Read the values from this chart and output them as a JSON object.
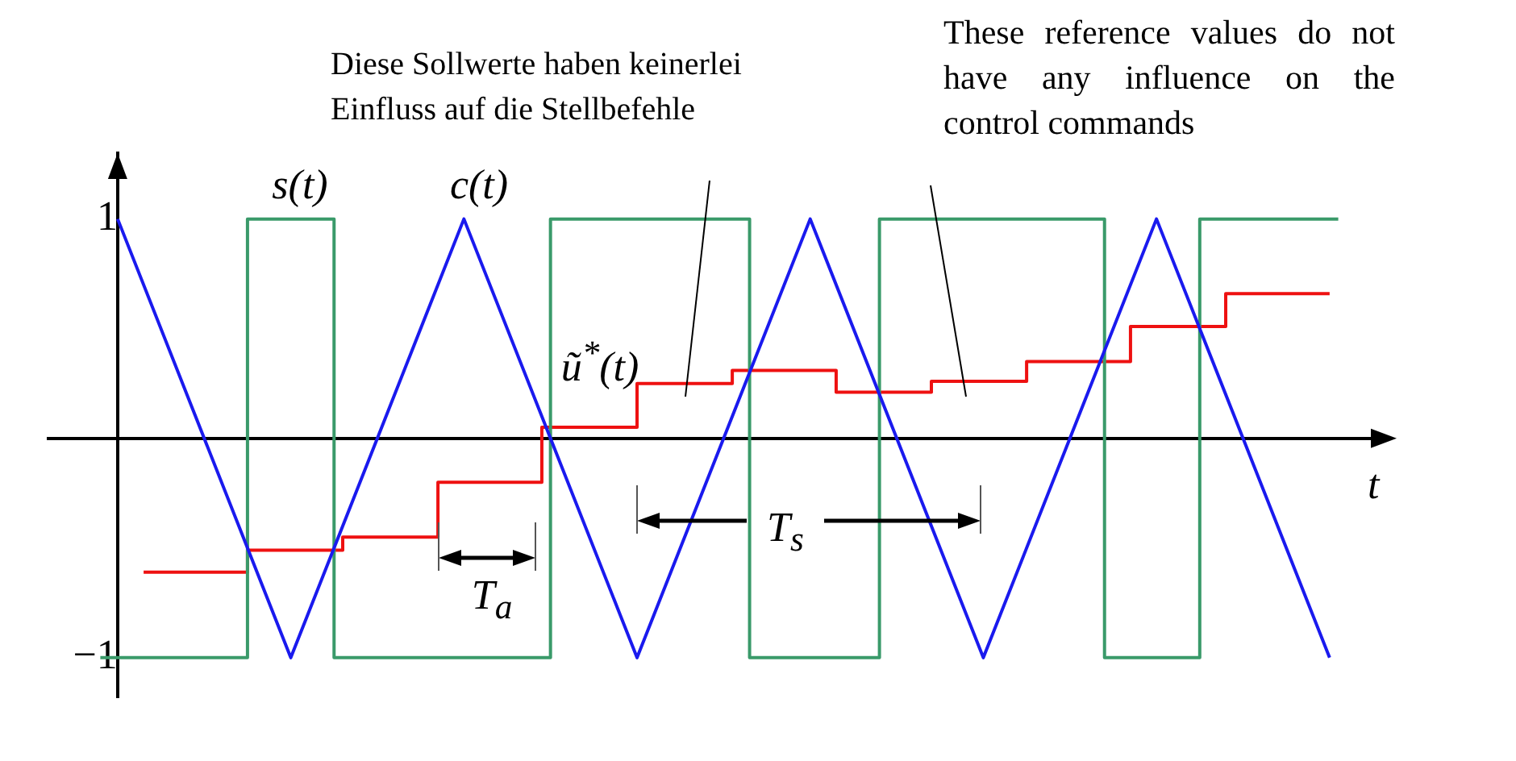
{
  "chart_data": {
    "type": "line",
    "xlabel": "t",
    "categories": [
      null,
      null,
      null,
      null,
      null,
      null,
      null,
      null,
      null,
      null,
      null,
      null,
      null,
      null,
      null,
      null,
      null,
      null,
      null,
      null,
      null,
      null,
      null,
      null,
      null,
      null,
      null,
      null,
      null,
      null,
      null,
      null,
      null,
      null,
      null,
      null,
      null,
      null,
      null,
      null,
      null,
      null,
      null,
      null,
      null,
      null,
      null,
      null,
      null,
      null,
      null,
      null,
      null,
      null,
      null,
      null,
      null,
      null,
      null,
      null,
      null,
      null,
      null,
      null,
      null,
      null,
      null,
      null,
      null,
      null,
      null,
      null,
      null,
      null,
      null,
      null,
      null,
      null,
      null,
      null,
      null,
      null,
      null,
      null,
      null,
      null,
      null,
      null,
      null,
      null,
      null,
      null,
      null,
      null,
      null,
      null,
      null,
      null,
      null,
      null,
      null,
      null,
      null,
      null,
      null,
      null,
      null,
      null,
      null,
      null,
      null,
      null,
      null,
      null,
      null,
      null,
      null,
      null,
      null,
      null,
      null,
      null,
      null,
      null,
      null,
      null,
      null,
      null,
      null,
      null,
      null,
      null,
      null,
      null,
      null,
      null,
      null,
      null,
      null,
      null,
      null,
      null,
      null,
      null,
      null,
      null,
      null,
      null,
      null,
      null,
      null,
      null,
      null,
      null,
      null,
      null
    ],
    "ylim": [
      -1.18,
      1.3
    ],
    "yticks": [
      1,
      {
        "value": -1,
        "label": "−1"
      }
    ],
    "grid": false,
    "legend": false,
    "marker": "none",
    "series": [
      {
        "type": "line",
        "color": "#1a1aee",
        "values": [
          null,
          null,
          null,
          null,
          null,
          null,
          null,
          null,
          1,
          null,
          null,
          null,
          null,
          null,
          null,
          null,
          null,
          null,
          null,
          null,
          null,
          null,
          null,
          null,
          null,
          null,
          null,
          null,
          -1,
          null,
          null,
          null,
          null,
          null,
          null,
          null,
          null,
          null,
          null,
          null,
          null,
          null,
          null,
          null,
          null,
          null,
          null,
          null,
          1,
          null,
          null,
          null,
          null,
          null,
          null,
          null,
          null,
          null,
          null,
          null,
          null,
          null,
          null,
          null,
          null,
          null,
          null,
          null,
          -1,
          null,
          null,
          null,
          null,
          null,
          null,
          null,
          null,
          null,
          null,
          null,
          null,
          null,
          null,
          null,
          null,
          null,
          null,
          null,
          1,
          null,
          null,
          null,
          null,
          null,
          null,
          null,
          null,
          null,
          null,
          null,
          null,
          null,
          null,
          null,
          null,
          null,
          null,
          null,
          -1,
          null,
          null,
          null,
          null,
          null,
          null,
          null,
          null,
          null,
          null,
          null,
          null,
          null,
          null,
          null,
          null,
          null,
          null,
          null,
          1,
          null,
          null,
          null,
          null,
          null,
          null,
          null,
          null,
          null,
          null,
          null,
          null,
          null,
          null,
          null,
          null,
          null,
          null,
          null,
          -1,
          null,
          null,
          null,
          null,
          null,
          null,
          null
        ]
      },
      {
        "type": "step",
        "color": "#3a9a6a",
        "values": [
          null,
          null,
          null,
          null,
          null,
          null,
          -1,
          null,
          null,
          null,
          null,
          null,
          null,
          null,
          null,
          null,
          null,
          null,
          null,
          null,
          null,
          null,
          null,
          1,
          null,
          null,
          null,
          null,
          null,
          null,
          null,
          null,
          null,
          -1,
          null,
          null,
          null,
          null,
          null,
          null,
          null,
          null,
          null,
          null,
          null,
          null,
          null,
          null,
          null,
          null,
          null,
          null,
          null,
          null,
          null,
          null,
          null,
          null,
          1,
          null,
          null,
          null,
          null,
          null,
          null,
          null,
          null,
          null,
          null,
          null,
          null,
          null,
          null,
          null,
          null,
          null,
          null,
          null,
          null,
          null,
          null,
          -1,
          null,
          null,
          null,
          null,
          null,
          null,
          null,
          null,
          null,
          null,
          null,
          null,
          null,
          null,
          1,
          null,
          null,
          null,
          null,
          null,
          null,
          null,
          null,
          null,
          null,
          null,
          null,
          null,
          null,
          null,
          null,
          null,
          null,
          null,
          null,
          null,
          null,
          null,
          null,
          null,
          -1,
          null,
          null,
          null,
          null,
          null,
          null,
          null,
          null,
          null,
          null,
          1,
          null,
          null,
          null,
          null,
          null,
          null,
          null,
          null,
          null,
          null,
          null,
          null,
          null,
          null,
          null,
          1,
          null,
          null,
          null,
          null,
          null,
          null
        ]
      },
      {
        "type": "step",
        "color": "#ee1111",
        "values": [
          null,
          null,
          null,
          null,
          null,
          null,
          null,
          null,
          null,
          null,
          null,
          -0.61,
          null,
          null,
          null,
          null,
          null,
          null,
          null,
          null,
          null,
          null,
          null,
          -0.51,
          null,
          null,
          null,
          null,
          null,
          null,
          null,
          null,
          null,
          null,
          -0.45,
          null,
          null,
          null,
          null,
          null,
          null,
          null,
          null,
          null,
          null,
          -0.2,
          null,
          null,
          null,
          null,
          null,
          null,
          null,
          null,
          null,
          null,
          null,
          0.05,
          null,
          null,
          null,
          null,
          null,
          null,
          null,
          null,
          null,
          null,
          0.25,
          null,
          null,
          null,
          null,
          null,
          null,
          null,
          null,
          null,
          null,
          0.31,
          null,
          null,
          null,
          null,
          null,
          null,
          null,
          null,
          null,
          null,
          null,
          0.21,
          null,
          null,
          null,
          null,
          null,
          null,
          null,
          null,
          null,
          null,
          0.26,
          null,
          null,
          null,
          null,
          null,
          null,
          null,
          null,
          null,
          null,
          0.35,
          null,
          null,
          null,
          null,
          null,
          null,
          null,
          null,
          null,
          null,
          null,
          0.51,
          null,
          null,
          null,
          null,
          null,
          null,
          null,
          null,
          null,
          null,
          0.66,
          null,
          null,
          null,
          null,
          null,
          null,
          null,
          null,
          null,
          null,
          null,
          0.66,
          null,
          null,
          null,
          null,
          null,
          null,
          null
        ]
      }
    ],
    "annotations": [
      "Diese Sollwerte haben keinerlei Einfluss auf die Stellbefehle",
      "These reference values do not have any influence on the control commands",
      "s(t)",
      "c(t)",
      "ũ$^{*}$(t)",
      "T$_{a}$",
      "T$_{s}$"
    ]
  }
}
